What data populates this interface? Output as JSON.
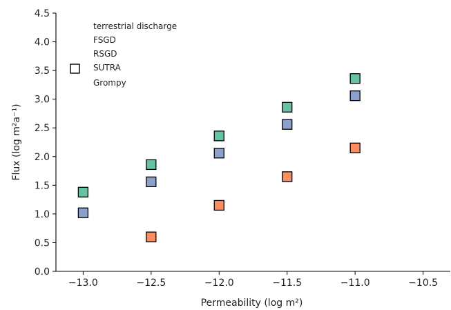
{
  "chart_data": {
    "type": "scatter",
    "xlabel": "Permeability (log m²)",
    "ylabel": "Flux (log m²a⁻¹)",
    "xlim": [
      -13.2,
      -10.3
    ],
    "ylim": [
      0.0,
      4.5
    ],
    "xticks": [
      -13.0,
      -12.5,
      -12.0,
      -11.5,
      -11.0,
      -10.5
    ],
    "xtick_labels": [
      "−13.0",
      "−12.5",
      "−12.0",
      "−11.5",
      "−11.0",
      "−10.5"
    ],
    "yticks": [
      0.0,
      0.5,
      1.0,
      1.5,
      2.0,
      2.5,
      3.0,
      3.5,
      4.0,
      4.5
    ],
    "ytick_labels": [
      "0.0",
      "0.5",
      "1.0",
      "1.5",
      "2.0",
      "2.5",
      "3.0",
      "3.5",
      "4.0",
      "4.5"
    ],
    "grid": false,
    "legend_position": "top-left",
    "legend": [
      "terrestrial discharge",
      "FSGD",
      "RSGD",
      "SUTRA",
      "Grompy"
    ],
    "series": [
      {
        "color": "#66c2a5",
        "x": [
          -13.0,
          -12.5,
          -12.0,
          -11.5,
          -11.0
        ],
        "y": [
          1.38,
          1.86,
          2.36,
          2.86,
          3.36
        ]
      },
      {
        "color": "#8da0cb",
        "x": [
          -13.0,
          -12.5,
          -12.0,
          -11.5,
          -11.0
        ],
        "y": [
          1.02,
          1.56,
          2.06,
          2.56,
          3.06
        ]
      },
      {
        "color": "#fc8d62",
        "x": [
          -12.5,
          -12.0,
          -11.5,
          -11.0
        ],
        "y": [
          0.6,
          1.15,
          1.65,
          2.15
        ]
      }
    ]
  }
}
